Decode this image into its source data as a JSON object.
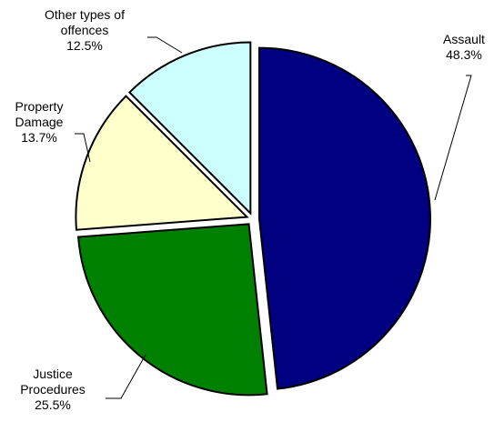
{
  "chart_data": {
    "type": "pie",
    "title": "",
    "slices": [
      {
        "name": "Assault",
        "value": 48.3,
        "label_lines": [
          "Assault",
          "48.3%"
        ],
        "color": "#000080"
      },
      {
        "name": "Justice Procedures",
        "value": 25.5,
        "label_lines": [
          "Justice",
          "Procedures",
          "25.5%"
        ],
        "color": "#008000"
      },
      {
        "name": "Property Damage",
        "value": 13.7,
        "label_lines": [
          "Property",
          "Damage",
          "13.7%"
        ],
        "color": "#FFFFCC"
      },
      {
        "name": "Other types of offences",
        "value": 12.5,
        "label_lines": [
          "Other types of",
          "offences",
          "12.5%"
        ],
        "color": "#CCFFFF"
      }
    ],
    "start_angle_deg": 0,
    "direction": "clockwise",
    "exploded": true,
    "legend": "none"
  }
}
